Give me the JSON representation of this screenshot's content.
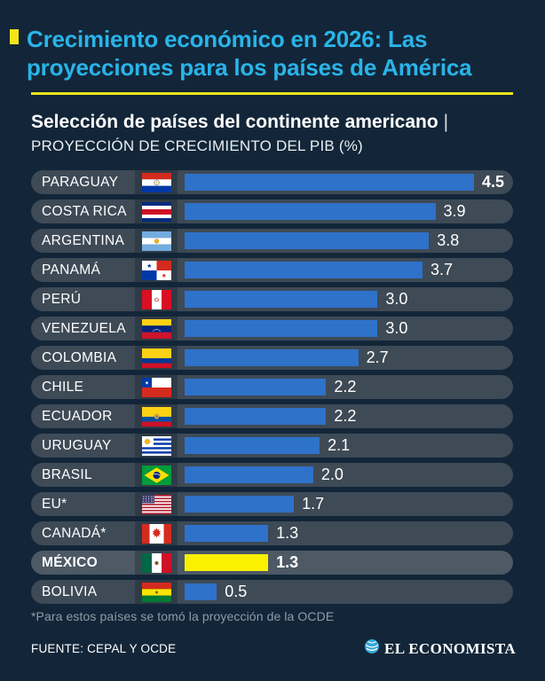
{
  "page": {
    "background": "#132639",
    "accent_yellow": "#f4e51a",
    "accent_cyan": "#29b4e8"
  },
  "header": {
    "title": "Crecimiento económico en 2026: Las proyecciones para los países de América",
    "subtitle_bold": "Selección de países del continente americano",
    "subtitle_sep": "|",
    "subtitle_line2": "PROYECCIÓN DE CRECIMIENTO DEL PIB (%)"
  },
  "chart_data": {
    "type": "bar",
    "orientation": "horizontal",
    "title": "Crecimiento económico en 2026: Las proyecciones para los países de América",
    "subtitle": "Selección de países del continente americano | PROYECCIÓN DE CRECIMIENTO DEL PIB (%)",
    "unit": "%",
    "xlim": [
      0,
      4.5
    ],
    "bar_color": "#2e72c9",
    "highlight_bar_color": "#faf000",
    "rows": [
      {
        "country": "PARAGUAY",
        "flag": "paraguay",
        "value": 4.5,
        "bold_value": true,
        "highlight": false
      },
      {
        "country": "COSTA RICA",
        "flag": "costa_rica",
        "value": 3.9,
        "bold_value": false,
        "highlight": false
      },
      {
        "country": "ARGENTINA",
        "flag": "argentina",
        "value": 3.8,
        "bold_value": false,
        "highlight": false
      },
      {
        "country": "PANAMÁ",
        "flag": "panama",
        "value": 3.7,
        "bold_value": false,
        "highlight": false
      },
      {
        "country": "PERÚ",
        "flag": "peru",
        "value": 3.0,
        "bold_value": false,
        "highlight": false
      },
      {
        "country": "VENEZUELA",
        "flag": "venezuela",
        "value": 3.0,
        "bold_value": false,
        "highlight": false
      },
      {
        "country": "COLOMBIA",
        "flag": "colombia",
        "value": 2.7,
        "bold_value": false,
        "highlight": false
      },
      {
        "country": "CHILE",
        "flag": "chile",
        "value": 2.2,
        "bold_value": false,
        "highlight": false
      },
      {
        "country": "ECUADOR",
        "flag": "ecuador",
        "value": 2.2,
        "bold_value": false,
        "highlight": false
      },
      {
        "country": "URUGUAY",
        "flag": "uruguay",
        "value": 2.1,
        "bold_value": false,
        "highlight": false
      },
      {
        "country": "BRASIL",
        "flag": "brazil",
        "value": 2.0,
        "bold_value": false,
        "highlight": false
      },
      {
        "country": "EU*",
        "flag": "usa",
        "value": 1.7,
        "bold_value": false,
        "highlight": false
      },
      {
        "country": "CANADÁ*",
        "flag": "canada",
        "value": 1.3,
        "bold_value": false,
        "highlight": false
      },
      {
        "country": "MÉXICO",
        "flag": "mexico",
        "value": 1.3,
        "bold_value": true,
        "highlight": true
      },
      {
        "country": "BOLIVIA",
        "flag": "bolivia",
        "value": 0.5,
        "bold_value": false,
        "highlight": false
      }
    ]
  },
  "footer": {
    "footnote": "*Para estos países se tomó la proyección de la OCDE",
    "source": "FUENTE: CEPAL Y OCDE",
    "brand": "EL ECONOMISTA",
    "brand_icon": "globe-icon",
    "brand_icon_color": "#35a8dc"
  }
}
